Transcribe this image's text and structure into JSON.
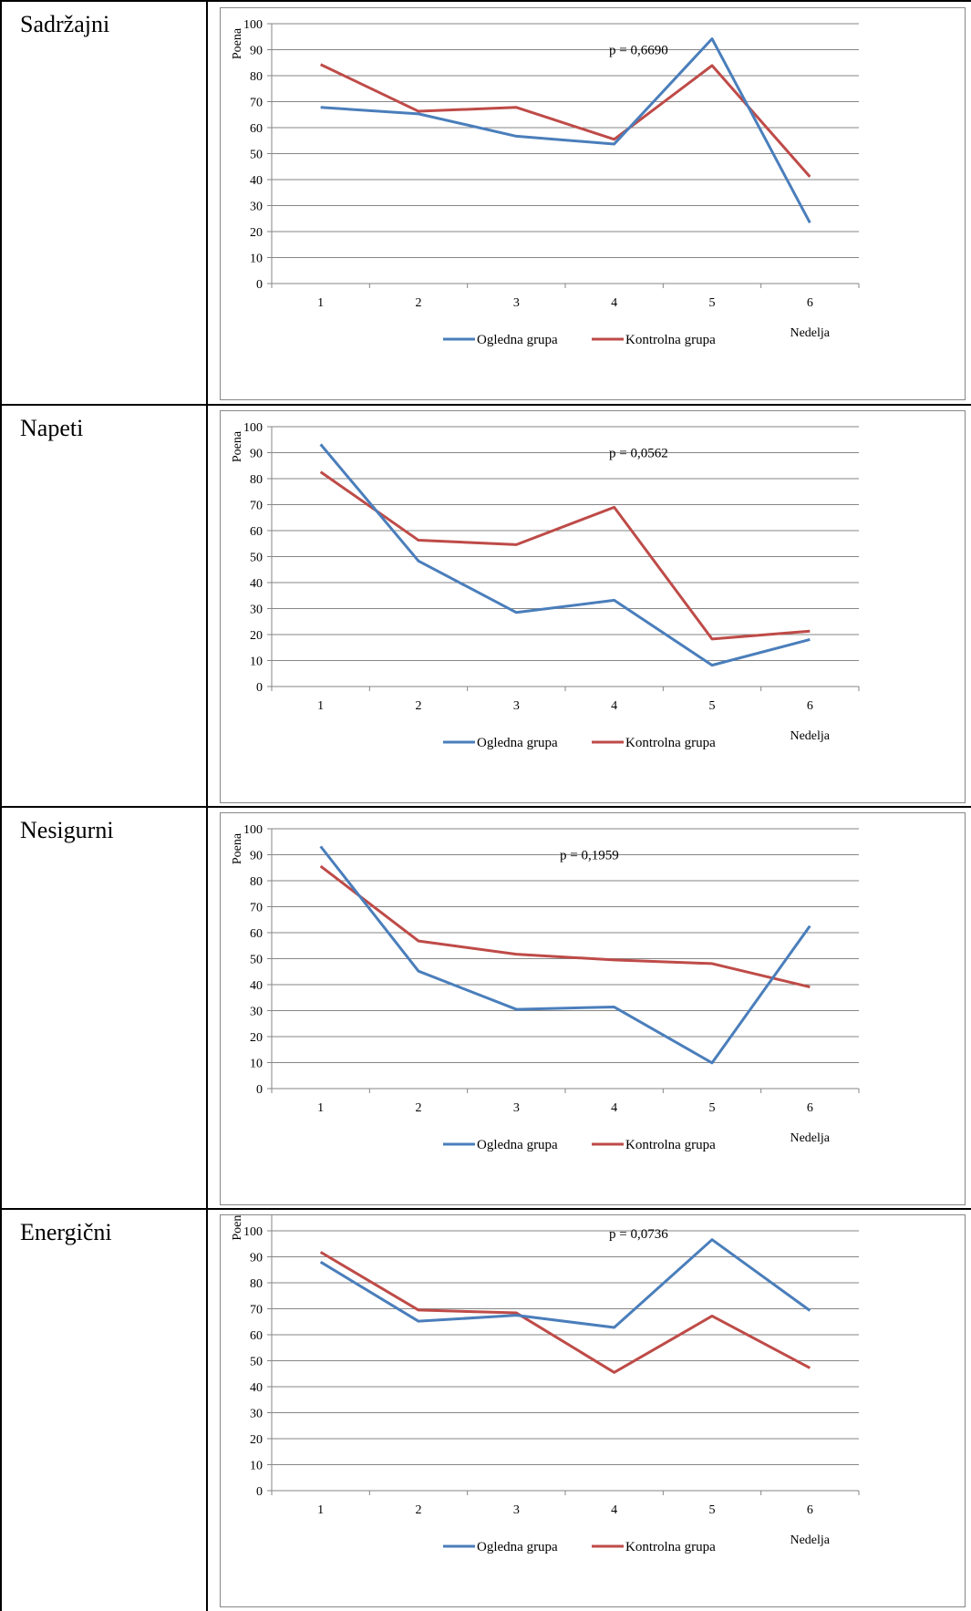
{
  "chart_data": [
    {
      "type": "line",
      "row_label": "Sadržajni",
      "ylabel": "Poena",
      "xlabel": "Nedelja",
      "annotation": "p = 0,6690",
      "categories": [
        "1",
        "2",
        "3",
        "4",
        "5",
        "6"
      ],
      "ylim": [
        0,
        100
      ],
      "ytick_step": 10,
      "series": [
        {
          "name": "Ogledna grupa",
          "color": "#4a7ebb",
          "values": [
            67.8,
            65.3,
            56.7,
            53.7,
            94.2,
            23.4
          ]
        },
        {
          "name": "Kontrolna grupa",
          "color": "#be4b48",
          "values": [
            84.3,
            66.3,
            67.8,
            55.5,
            83.9,
            41.1
          ]
        }
      ]
    },
    {
      "type": "line",
      "row_label": "Napeti",
      "ylabel": "Poena",
      "xlabel": "Nedelja",
      "annotation": "p = 0,0562",
      "categories": [
        "1",
        "2",
        "3",
        "4",
        "5",
        "6"
      ],
      "ylim": [
        0,
        100
      ],
      "ytick_step": 10,
      "series": [
        {
          "name": "Ogledna grupa",
          "color": "#4a7ebb",
          "values": [
            93.2,
            48.3,
            28.5,
            33.2,
            8.2,
            18.1
          ]
        },
        {
          "name": "Kontrolna grupa",
          "color": "#be4b48",
          "values": [
            82.6,
            56.3,
            54.6,
            69.0,
            18.3,
            21.3
          ]
        }
      ]
    },
    {
      "type": "line",
      "row_label": "Nesigurni",
      "ylabel": "Poena",
      "xlabel": "Nedelja",
      "annotation": "p = 0,1959",
      "categories": [
        "1",
        "2",
        "3",
        "4",
        "5",
        "6"
      ],
      "ylim": [
        0,
        100
      ],
      "ytick_step": 10,
      "series": [
        {
          "name": "Ogledna grupa",
          "color": "#4a7ebb",
          "values": [
            93.2,
            45.2,
            30.5,
            31.4,
            9.9,
            62.6
          ]
        },
        {
          "name": "Kontrolna grupa",
          "color": "#be4b48",
          "values": [
            85.6,
            56.8,
            51.7,
            49.5,
            48.1,
            39.1
          ]
        }
      ]
    },
    {
      "type": "line",
      "row_label": "Energični",
      "ylabel": "Poena",
      "xlabel": "Nedelja",
      "annotation": "p = 0,0736",
      "categories": [
        "1",
        "2",
        "3",
        "4",
        "5",
        "6"
      ],
      "ylim": [
        0,
        110
      ],
      "ytick_step": 10,
      "series": [
        {
          "name": "Ogledna grupa",
          "color": "#4a7ebb",
          "values": [
            88.0,
            65.2,
            67.5,
            62.8,
            96.6,
            69.3
          ]
        },
        {
          "name": "Kontrolna grupa",
          "color": "#be4b48",
          "values": [
            91.8,
            69.5,
            68.4,
            45.5,
            67.2,
            47.2
          ]
        }
      ]
    }
  ]
}
